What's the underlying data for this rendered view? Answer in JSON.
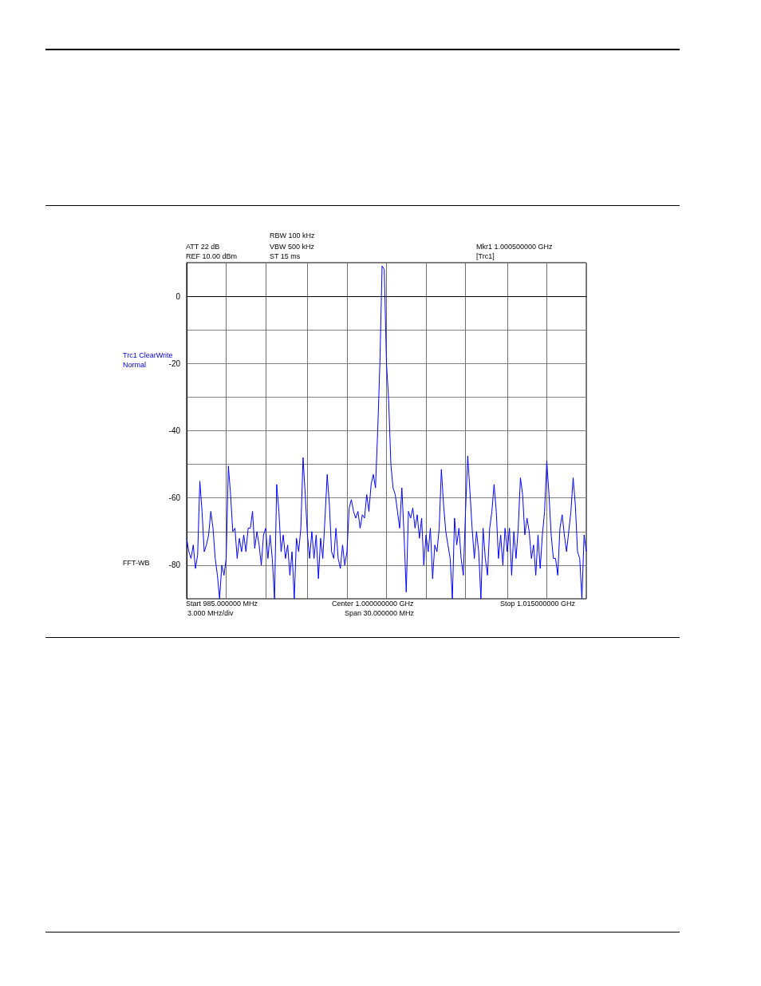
{
  "chart_data": {
    "type": "line",
    "color": "#0000ff",
    "categories": [
      null,
      null,
      null,
      null,
      null,
      null,
      null,
      null,
      null,
      null,
      null,
      null,
      null,
      null,
      null,
      null,
      null,
      null,
      null,
      null,
      null,
      null,
      null,
      null,
      null,
      null,
      null,
      null,
      null,
      null,
      null,
      null,
      null,
      null,
      null,
      null,
      null,
      null,
      null,
      null,
      null,
      null,
      null,
      null,
      null,
      null,
      null,
      null,
      null,
      null,
      null,
      null,
      null,
      null,
      null,
      null,
      null,
      null,
      null,
      null,
      null,
      null,
      null,
      null,
      null,
      null,
      null,
      null,
      null,
      null,
      null,
      null,
      null,
      null,
      null,
      null,
      null,
      null,
      null,
      null,
      null,
      null,
      null,
      null,
      null,
      null,
      null,
      null,
      null,
      null,
      null,
      null,
      null,
      null,
      null,
      null,
      null,
      null,
      null,
      null,
      null,
      null,
      null,
      null,
      null,
      null,
      null,
      null,
      null,
      null,
      null,
      null,
      null,
      null,
      null,
      null,
      null,
      null,
      null,
      null,
      null,
      null,
      null,
      null,
      null,
      null,
      null,
      null,
      null,
      null,
      null,
      null,
      null,
      null,
      null,
      null,
      null,
      null,
      null,
      null,
      null,
      null,
      null,
      null,
      null,
      null,
      null,
      null,
      null,
      null,
      null,
      null,
      null,
      null,
      null,
      null,
      null,
      null,
      null,
      null,
      null,
      null,
      null,
      null,
      null,
      null,
      null,
      null,
      null,
      null,
      null,
      null,
      null,
      null,
      null,
      null,
      null,
      null,
      null,
      null,
      null,
      null,
      null
    ],
    "values": [
      -72,
      -76,
      -78,
      -74,
      -81,
      -77,
      -55,
      -64,
      -76,
      -74,
      -71,
      -64,
      -69,
      -78,
      -83,
      -90,
      -80,
      -83,
      -78,
      -50.5,
      -59,
      -70,
      -69,
      -78,
      -72,
      -76,
      -71,
      -76,
      -69,
      -69,
      -64,
      -75,
      -70,
      -74,
      -80,
      -71,
      -69,
      -78,
      -71,
      -78,
      -90,
      -56,
      -64,
      -76,
      -71,
      -78,
      -74,
      -83,
      -76,
      -90,
      -72,
      -76,
      -69,
      -48,
      -59,
      -71,
      -78,
      -70,
      -78,
      -71,
      -84,
      -72,
      -78,
      -66,
      -53,
      -62,
      -76,
      -78,
      -69,
      -78,
      -81,
      -74,
      -80,
      -76,
      -63,
      -60.5,
      -64,
      -66,
      -64,
      -69,
      -65,
      -66,
      -59,
      -64,
      -56,
      -53,
      -57,
      -40,
      -20,
      9,
      8,
      -20,
      -31,
      -50,
      -57,
      -59,
      -64,
      -69,
      -57,
      -71,
      -88,
      -64,
      -66,
      -63,
      -69,
      -65,
      -72,
      -66,
      -80,
      -71,
      -76,
      -69,
      -84,
      -74,
      -76,
      -69,
      -51.5,
      -62,
      -70,
      -74,
      -78,
      -90,
      -66,
      -74,
      -69,
      -78,
      -83,
      -64,
      -47.5,
      -58,
      -69,
      -78,
      -70,
      -76,
      -90,
      -69,
      -78,
      -83,
      -69,
      -64,
      -56,
      -64,
      -78,
      -71,
      -80,
      -69,
      -76,
      -69,
      -83,
      -70,
      -78,
      -69,
      -54,
      -59,
      -71,
      -66,
      -70,
      -78,
      -74,
      -83,
      -71,
      -81,
      -71,
      -64,
      -49,
      -59,
      -71,
      -78,
      -78,
      -83,
      -69,
      -65,
      -71,
      -76,
      -70,
      -64,
      -54,
      -62,
      -76,
      -78,
      -90,
      -71,
      -76
    ],
    "ylim": [
      -90,
      10
    ],
    "yticks": [
      {
        "value": -90,
        "label": null
      },
      -80,
      {
        "value": -70,
        "label": null
      },
      -60,
      {
        "value": -50,
        "label": null
      },
      -40,
      {
        "value": -30,
        "label": null
      },
      -20,
      {
        "value": -10,
        "label": null
      },
      0,
      {
        "value": 10,
        "label": null
      }
    ],
    "tick_labels": "y",
    "grid": true,
    "annotations": [
      "ATT 22 dB",
      "REF 10.00 dBm",
      "RBW 100 kHz",
      "VBW 500 kHz",
      "ST 15 ms",
      "Mkr1 1.000500000 GHz",
      "[Trc1]",
      "Trc1 ClearWrite",
      "Normal",
      "FFT-WB",
      "Start 985.000000 MHz",
      "3.000 MHz/div",
      "Center 1.000000000 GHz",
      "Span 30.000000 MHz",
      "Stop 1.015000000 GHz"
    ]
  }
}
